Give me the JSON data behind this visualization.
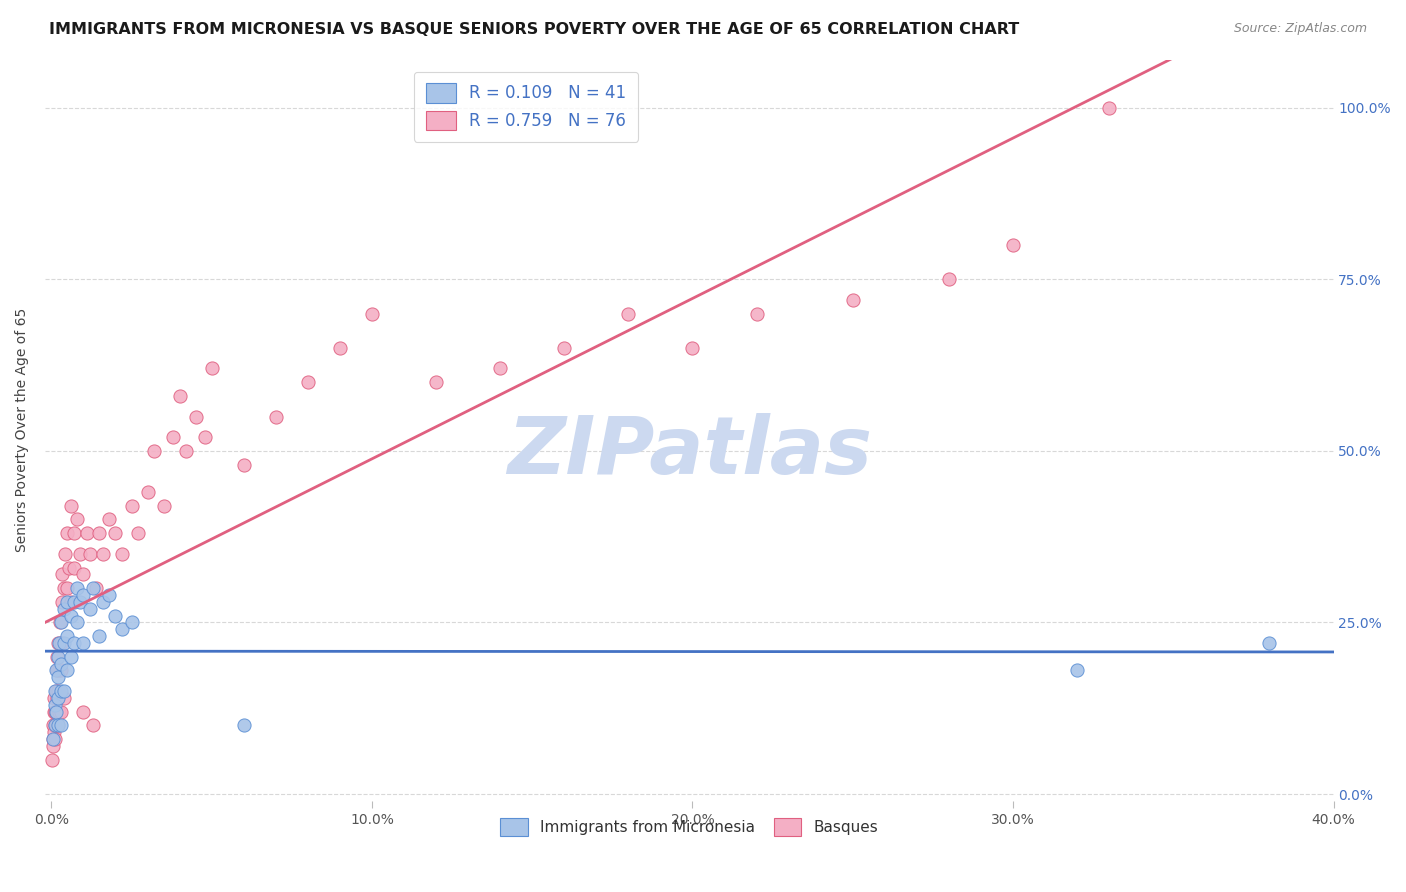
{
  "title": "IMMIGRANTS FROM MICRONESIA VS BASQUE SENIORS POVERTY OVER THE AGE OF 65 CORRELATION CHART",
  "source": "Source: ZipAtlas.com",
  "ylabel": "Seniors Poverty Over the Age of 65",
  "xlabel_ticks": [
    "0.0%",
    "10.0%",
    "20.0%",
    "30.0%",
    "40.0%"
  ],
  "xlabel_vals": [
    0.0,
    0.1,
    0.2,
    0.3,
    0.4
  ],
  "ylabel_ticks_right": [
    "0.0%",
    "25.0%",
    "50.0%",
    "75.0%",
    "100.0%"
  ],
  "ylabel_vals": [
    0.0,
    0.25,
    0.5,
    0.75,
    1.0
  ],
  "xlim": [
    -0.002,
    0.4
  ],
  "ylim": [
    -0.01,
    1.07
  ],
  "blue_R": 0.109,
  "blue_N": 41,
  "pink_R": 0.759,
  "pink_N": 76,
  "blue_color": "#a8c4e8",
  "pink_color": "#f4afc5",
  "blue_edge_color": "#5b8fd4",
  "pink_edge_color": "#e06080",
  "blue_line_color": "#4472c4",
  "pink_line_color": "#e06080",
  "watermark": "ZIPatlas",
  "watermark_color": "#ccd9f0",
  "legend_label_blue": "Immigrants from Micronesia",
  "legend_label_pink": "Basques",
  "blue_scatter_x": [
    0.0005,
    0.001,
    0.001,
    0.001,
    0.0015,
    0.0015,
    0.002,
    0.002,
    0.002,
    0.002,
    0.0025,
    0.003,
    0.003,
    0.003,
    0.003,
    0.004,
    0.004,
    0.004,
    0.005,
    0.005,
    0.005,
    0.006,
    0.006,
    0.007,
    0.007,
    0.008,
    0.008,
    0.009,
    0.01,
    0.01,
    0.012,
    0.013,
    0.015,
    0.016,
    0.018,
    0.02,
    0.022,
    0.025,
    0.06,
    0.32,
    0.38
  ],
  "blue_scatter_y": [
    0.08,
    0.1,
    0.13,
    0.15,
    0.12,
    0.18,
    0.1,
    0.14,
    0.17,
    0.2,
    0.22,
    0.1,
    0.15,
    0.19,
    0.25,
    0.15,
    0.22,
    0.27,
    0.18,
    0.23,
    0.28,
    0.2,
    0.26,
    0.22,
    0.28,
    0.25,
    0.3,
    0.28,
    0.22,
    0.29,
    0.27,
    0.3,
    0.23,
    0.28,
    0.29,
    0.26,
    0.24,
    0.25,
    0.1,
    0.18,
    0.22
  ],
  "pink_scatter_x": [
    0.0002,
    0.0004,
    0.0005,
    0.0006,
    0.0007,
    0.0008,
    0.0009,
    0.001,
    0.001,
    0.0012,
    0.0013,
    0.0014,
    0.0015,
    0.0016,
    0.0017,
    0.0018,
    0.002,
    0.002,
    0.0022,
    0.0023,
    0.0025,
    0.0026,
    0.003,
    0.003,
    0.003,
    0.0032,
    0.0034,
    0.004,
    0.004,
    0.0042,
    0.005,
    0.005,
    0.0055,
    0.006,
    0.006,
    0.007,
    0.007,
    0.008,
    0.009,
    0.01,
    0.01,
    0.011,
    0.012,
    0.013,
    0.014,
    0.015,
    0.016,
    0.018,
    0.02,
    0.022,
    0.025,
    0.027,
    0.03,
    0.032,
    0.035,
    0.038,
    0.04,
    0.042,
    0.045,
    0.048,
    0.05,
    0.06,
    0.07,
    0.08,
    0.09,
    0.1,
    0.12,
    0.14,
    0.16,
    0.18,
    0.2,
    0.22,
    0.25,
    0.28,
    0.3,
    0.33
  ],
  "pink_scatter_y": [
    0.05,
    0.08,
    0.1,
    0.07,
    0.12,
    0.09,
    0.14,
    0.08,
    0.12,
    0.1,
    0.15,
    0.12,
    0.1,
    0.18,
    0.14,
    0.2,
    0.15,
    0.1,
    0.22,
    0.18,
    0.12,
    0.25,
    0.18,
    0.22,
    0.12,
    0.28,
    0.32,
    0.3,
    0.14,
    0.35,
    0.3,
    0.38,
    0.33,
    0.28,
    0.42,
    0.38,
    0.33,
    0.4,
    0.35,
    0.12,
    0.32,
    0.38,
    0.35,
    0.1,
    0.3,
    0.38,
    0.35,
    0.4,
    0.38,
    0.35,
    0.42,
    0.38,
    0.44,
    0.5,
    0.42,
    0.52,
    0.58,
    0.5,
    0.55,
    0.52,
    0.62,
    0.48,
    0.55,
    0.6,
    0.65,
    0.7,
    0.6,
    0.62,
    0.65,
    0.7,
    0.65,
    0.7,
    0.72,
    0.75,
    0.8,
    1.0
  ],
  "grid_color": "#d8d8d8",
  "title_fontsize": 11.5,
  "axis_fontsize": 10,
  "tick_fontsize": 10,
  "right_tick_color": "#4472c4"
}
